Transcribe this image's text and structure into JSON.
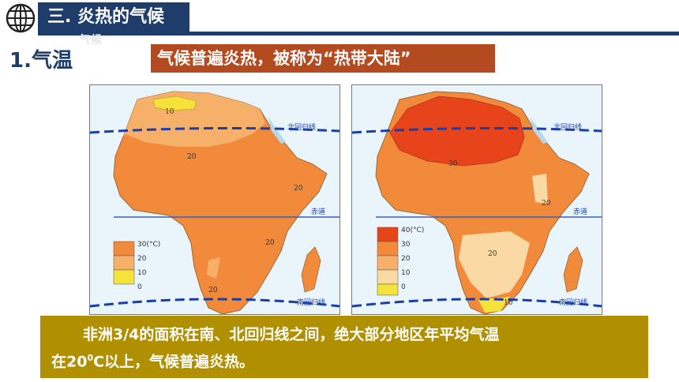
{
  "header": {
    "section_title": "三. 炎热的气候",
    "ghost_text": "气候"
  },
  "subheading": "1.气温",
  "tagline": "气候普遍炎热，被称为“热带大陆”",
  "maps": {
    "left": {
      "tropic_north_label": "北回归线",
      "equator_label": "赤道",
      "tropic_south_label": "南回归线",
      "isotherm_labels": [
        "10",
        "20",
        "20",
        "20",
        "20"
      ],
      "legend": [
        "30(°C)",
        "20",
        "10",
        "0"
      ]
    },
    "right": {
      "tropic_north_label": "北回归线",
      "equator_label": "赤道",
      "tropic_south_label": "南回归线",
      "isotherm_labels": [
        "30",
        "20",
        "20",
        "10"
      ],
      "legend": [
        "40(°C)",
        "30",
        "20",
        "10",
        "0"
      ]
    }
  },
  "caption": {
    "line1": "非洲3/4的面积在南、北回归线之间，绝大部分地区年平均气温",
    "line2_a": "在20",
    "line2_sup": "0",
    "line2_b": "C以上，气候普遍炎热。"
  },
  "colors": {
    "navy": "#1f3d6b",
    "tagline_bg": "#b44a20",
    "caption_bg": "#b09000",
    "temp_40": "#e8441c",
    "temp_30": "#f28a3c",
    "temp_20": "#f7b06a",
    "temp_10": "#fbd9a4",
    "temp_0": "#f5e23a"
  }
}
